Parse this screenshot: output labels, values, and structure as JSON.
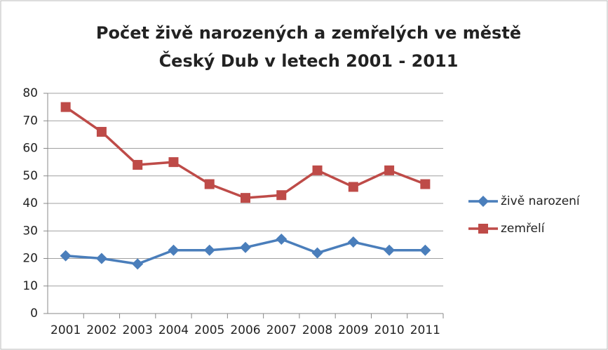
{
  "chart_data": {
    "type": "line",
    "title": [
      "Počet živě narozených a zemřelých ve městě",
      "Český Dub v letech 2001 - 2011"
    ],
    "categories": [
      "2001",
      "2002",
      "2003",
      "2004",
      "2005",
      "2006",
      "2007",
      "2008",
      "2009",
      "2010",
      "2011"
    ],
    "series": [
      {
        "name": "živě narození",
        "color": "#4a7ebb",
        "marker": "diamond",
        "values": [
          21,
          20,
          18,
          23,
          23,
          24,
          27,
          22,
          26,
          23,
          23
        ]
      },
      {
        "name": "zemřelí",
        "color": "#be4b48",
        "marker": "square",
        "values": [
          75,
          66,
          54,
          55,
          47,
          42,
          43,
          52,
          46,
          52,
          47
        ]
      }
    ],
    "ylim": [
      0,
      80
    ],
    "yticks": [
      0,
      10,
      20,
      30,
      40,
      50,
      60,
      70,
      80
    ],
    "grid": true,
    "legend": "right"
  }
}
